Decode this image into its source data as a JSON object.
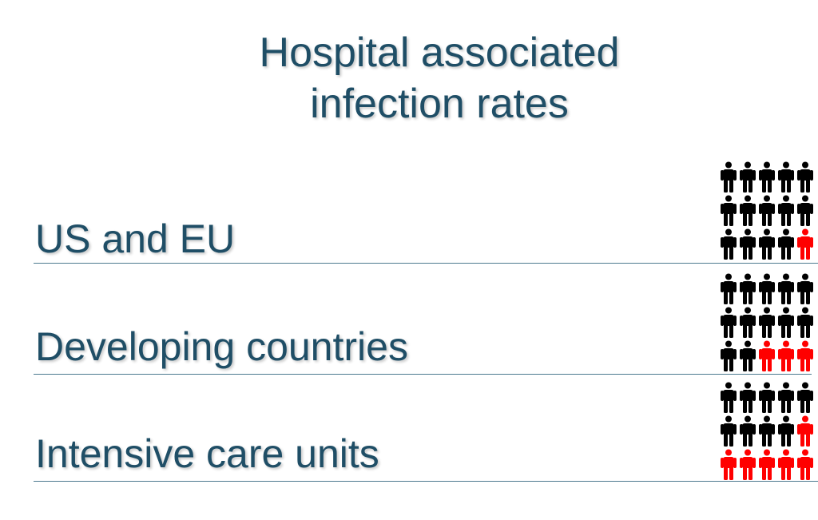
{
  "title": {
    "line1": "Hospital associated",
    "line2": "infection rates"
  },
  "rows": [
    {
      "label": "US and EU",
      "infected": 1,
      "total": 15
    },
    {
      "label": "Developing countries",
      "infected": 3,
      "total": 15
    },
    {
      "label": "Intensive care units",
      "infected": 6,
      "total": 15
    }
  ],
  "icon": "person-icon",
  "colors": {
    "text": "#1f4e66",
    "healthy": "#000000",
    "infected": "#ff0000",
    "rule": "#4d7a8f"
  }
}
